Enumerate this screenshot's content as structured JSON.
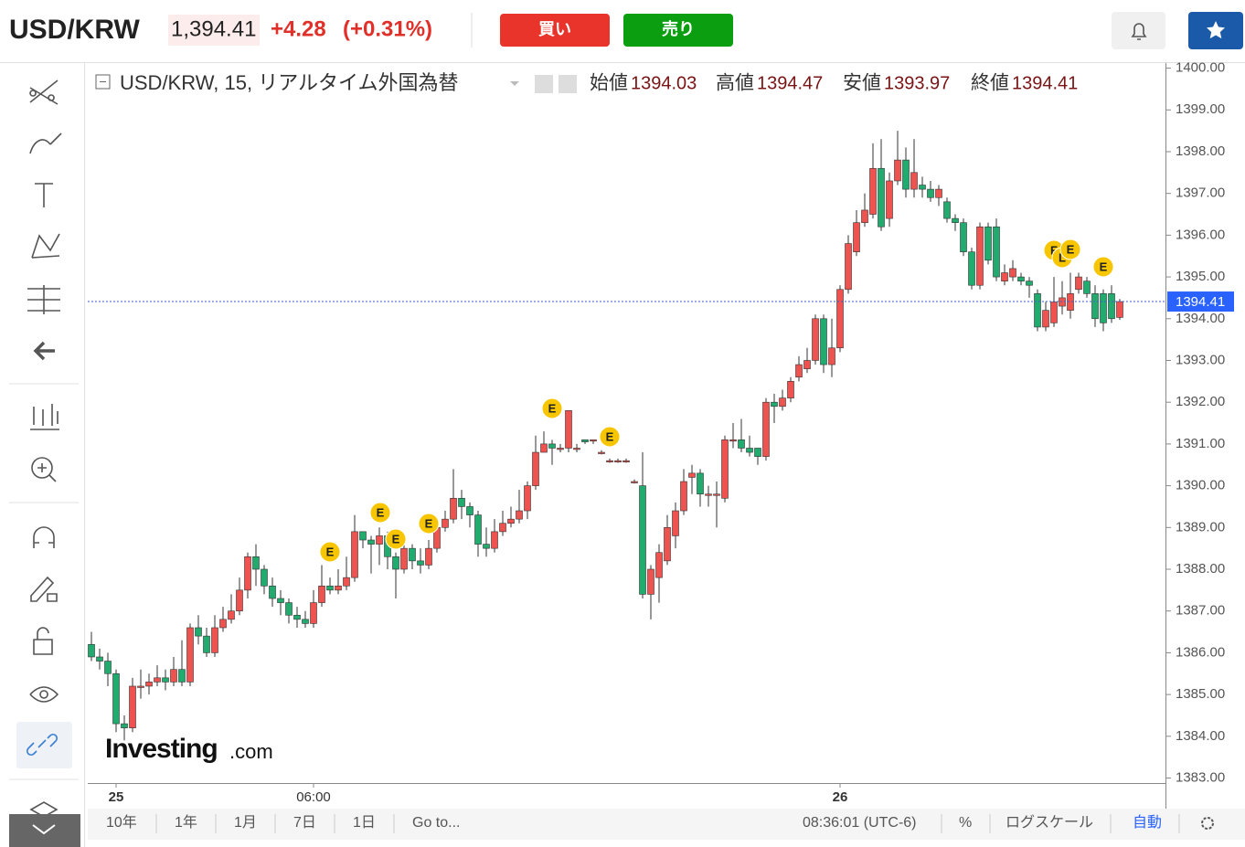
{
  "header": {
    "symbol": "USD/KRW",
    "price": "1,394.41",
    "change": "+4.28",
    "change_pct": "(+0.31%)",
    "buy": "買い",
    "sell": "売り"
  },
  "chart_data": {
    "type": "candlestick",
    "title": "USD/KRW, 15, リアルタイム外国為替",
    "ohlc_labels": [
      "始値",
      "高値",
      "安値",
      "終値"
    ],
    "categories": [
      null,
      null,
      null,
      "25",
      null,
      null,
      null,
      null,
      null,
      null,
      null,
      null,
      null,
      null,
      null,
      null,
      null,
      null,
      null,
      null,
      null,
      null,
      null,
      null,
      null,
      null,
      null,
      "06:00",
      null,
      null,
      null,
      null,
      null,
      null,
      null,
      null,
      null,
      null,
      null,
      null,
      null,
      null,
      null,
      null,
      null,
      null,
      null,
      null,
      null,
      null,
      null,
      null,
      null,
      null,
      null,
      null,
      null,
      null,
      null,
      null,
      null,
      null,
      null,
      null,
      null,
      null,
      null,
      null,
      null,
      null,
      null,
      null,
      null,
      null,
      null,
      null,
      null,
      null,
      null,
      null,
      null,
      null,
      null,
      null,
      null,
      null,
      null,
      null,
      null,
      null,
      null,
      "26",
      null,
      null,
      null,
      null,
      null,
      null,
      null,
      null,
      null,
      null,
      null,
      null,
      null,
      null,
      null,
      null,
      null,
      null,
      null,
      null,
      null,
      null,
      null,
      null,
      null,
      null,
      null,
      null,
      null,
      null,
      null,
      null,
      null,
      null
    ],
    "open": [
      1386.2,
      1385.9,
      1385.8,
      1385.5,
      1384.3,
      1384.2,
      1385.2,
      1385.2,
      1385.3,
      1385.4,
      1385.3,
      1385.6,
      1385.3,
      1386.6,
      1386.4,
      1386.0,
      1386.6,
      1386.8,
      1387.0,
      1387.5,
      1388.3,
      1388.0,
      1387.6,
      1387.3,
      1387.2,
      1386.9,
      1386.8,
      1386.7,
      1387.2,
      1387.6,
      1387.5,
      1387.6,
      1387.8,
      1388.9,
      1388.7,
      1388.6,
      1388.8,
      1388.3,
      1388.0,
      1388.5,
      1388.2,
      1388.1,
      1388.5,
      1389.0,
      1389.2,
      1389.7,
      1389.5,
      1389.3,
      1388.6,
      1388.5,
      1388.9,
      1389.1,
      1389.2,
      1389.4,
      1390.0,
      1390.8,
      1391.0,
      1390.9,
      1390.9,
      1390.9,
      1391.1,
      1391.1,
      1390.8,
      1390.6,
      1390.6,
      1390.6,
      1390.1,
      1390.0,
      1387.4,
      1387.8,
      1388.2,
      1388.8,
      1389.4,
      1390.2,
      1390.3,
      1389.8,
      1389.8,
      1389.7,
      1391.1,
      1391.1,
      1390.9,
      1390.9,
      1390.7,
      1392.0,
      1391.9,
      1392.1,
      1392.6,
      1392.8,
      1393.0,
      1394.0,
      1392.9,
      1393.3,
      1394.7,
      1395.6,
      1396.3,
      1396.5,
      1397.6,
      1396.4,
      1397.3,
      1397.8,
      1397.1,
      1397.2,
      1397.1,
      1396.9,
      1396.8,
      1396.4,
      1396.3,
      1395.6,
      1394.8,
      1396.2,
      1396.2,
      1394.9,
      1395.0,
      1395.0,
      1394.9,
      1394.6,
      1393.8,
      1393.9,
      1394.3,
      1394.2,
      1394.7,
      1394.9,
      1394.6,
      1394.6,
      1394.6,
      1394.03
    ],
    "high": [
      1386.5,
      1386.1,
      1386.0,
      1385.6,
      1384.5,
      1385.4,
      1385.6,
      1385.5,
      1385.7,
      1385.6,
      1385.9,
      1386.3,
      1386.7,
      1386.9,
      1386.6,
      1386.9,
      1387.1,
      1387.4,
      1387.8,
      1388.4,
      1388.6,
      1388.1,
      1387.8,
      1387.5,
      1387.3,
      1387.1,
      1387.0,
      1387.5,
      1388.1,
      1387.8,
      1388.0,
      1388.3,
      1389.3,
      1388.9,
      1388.8,
      1389.0,
      1388.9,
      1388.4,
      1388.7,
      1388.6,
      1388.5,
      1388.7,
      1389.2,
      1389.4,
      1390.4,
      1389.9,
      1389.6,
      1389.4,
      1389.0,
      1389.2,
      1389.4,
      1389.5,
      1389.9,
      1390.1,
      1391.2,
      1391.3,
      1391.1,
      1391.0,
      1391.8,
      1391.0,
      1391.1,
      1391.1,
      1390.85,
      1390.65,
      1390.65,
      1390.65,
      1390.15,
      1390.8,
      1388.1,
      1388.6,
      1389.3,
      1389.6,
      1390.4,
      1390.5,
      1390.4,
      1390.0,
      1390.1,
      1391.2,
      1391.5,
      1391.6,
      1391.2,
      1390.9,
      1392.1,
      1392.2,
      1392.3,
      1392.6,
      1393.1,
      1393.3,
      1394.1,
      1394.1,
      1394.0,
      1394.8,
      1396.0,
      1396.6,
      1397.0,
      1398.2,
      1398.3,
      1397.5,
      1398.5,
      1398.1,
      1398.3,
      1397.4,
      1397.3,
      1397.2,
      1396.9,
      1396.5,
      1396.4,
      1395.7,
      1396.3,
      1396.3,
      1396.4,
      1395.3,
      1395.4,
      1395.1,
      1395.0,
      1394.7,
      1394.4,
      1395.0,
      1394.9,
      1395.1,
      1395.1,
      1395.0,
      1394.8,
      1394.7,
      1394.8,
      1394.47
    ],
    "low": [
      1385.8,
      1385.6,
      1385.2,
      1384.1,
      1383.9,
      1384.1,
      1384.9,
      1385.0,
      1385.2,
      1385.1,
      1385.2,
      1385.2,
      1385.2,
      1386.2,
      1385.9,
      1385.9,
      1386.5,
      1386.7,
      1386.9,
      1387.3,
      1387.6,
      1387.4,
      1387.1,
      1386.9,
      1386.7,
      1386.6,
      1386.6,
      1386.6,
      1387.1,
      1387.4,
      1387.4,
      1387.5,
      1387.7,
      1388.5,
      1387.9,
      1388.1,
      1388.0,
      1387.3,
      1387.9,
      1388.0,
      1387.9,
      1388.0,
      1388.4,
      1388.9,
      1389.1,
      1389.2,
      1389.0,
      1388.3,
      1388.3,
      1388.4,
      1388.8,
      1389.0,
      1389.1,
      1389.2,
      1389.9,
      1390.8,
      1390.5,
      1390.8,
      1390.8,
      1390.8,
      1391.0,
      1391.0,
      1390.75,
      1390.55,
      1390.55,
      1390.55,
      1390.05,
      1387.3,
      1386.8,
      1387.2,
      1388.1,
      1388.5,
      1389.3,
      1389.8,
      1389.5,
      1389.5,
      1389.0,
      1389.6,
      1390.9,
      1390.8,
      1390.7,
      1390.5,
      1390.6,
      1391.5,
      1391.8,
      1392.0,
      1392.5,
      1392.7,
      1392.9,
      1392.7,
      1392.6,
      1393.2,
      1394.6,
      1395.5,
      1396.2,
      1396.4,
      1396.1,
      1396.2,
      1397.2,
      1396.9,
      1396.9,
      1396.9,
      1396.8,
      1396.7,
      1396.3,
      1396.1,
      1395.5,
      1394.7,
      1394.7,
      1395.3,
      1394.9,
      1394.8,
      1394.9,
      1394.8,
      1394.5,
      1393.7,
      1393.7,
      1393.8,
      1394.1,
      1394.0,
      1394.6,
      1394.5,
      1393.8,
      1393.7,
      1393.9,
      1393.97
    ],
    "close": [
      1385.9,
      1385.8,
      1385.5,
      1384.3,
      1384.2,
      1385.2,
      1385.2,
      1385.3,
      1385.4,
      1385.3,
      1385.6,
      1385.3,
      1386.6,
      1386.4,
      1386.0,
      1386.6,
      1386.8,
      1387.0,
      1387.5,
      1388.3,
      1388.0,
      1387.6,
      1387.3,
      1387.2,
      1386.9,
      1386.8,
      1386.7,
      1387.2,
      1387.6,
      1387.5,
      1387.6,
      1387.8,
      1388.9,
      1388.7,
      1388.6,
      1388.8,
      1388.3,
      1388.0,
      1388.5,
      1388.2,
      1388.1,
      1388.5,
      1389.0,
      1389.2,
      1389.7,
      1389.5,
      1389.3,
      1388.6,
      1388.5,
      1388.9,
      1389.1,
      1389.2,
      1389.4,
      1390.0,
      1390.8,
      1391.0,
      1390.9,
      1390.9,
      1391.8,
      1390.9,
      1391.05,
      1391.1,
      1390.8,
      1390.6,
      1390.6,
      1390.6,
      1390.1,
      1387.4,
      1388.0,
      1388.4,
      1389.0,
      1389.4,
      1390.1,
      1390.3,
      1389.8,
      1389.8,
      1389.8,
      1391.1,
      1391.1,
      1390.9,
      1390.8,
      1390.7,
      1392.0,
      1391.9,
      1392.1,
      1392.5,
      1392.9,
      1393.0,
      1394.0,
      1392.9,
      1393.3,
      1394.7,
      1395.8,
      1396.3,
      1396.6,
      1397.6,
      1396.2,
      1397.3,
      1397.8,
      1397.1,
      1397.5,
      1397.1,
      1396.9,
      1397.1,
      1396.4,
      1396.3,
      1395.6,
      1394.8,
      1396.2,
      1395.4,
      1395.0,
      1395.1,
      1395.2,
      1394.9,
      1394.8,
      1393.8,
      1394.2,
      1394.4,
      1394.5,
      1394.6,
      1395.0,
      1394.6,
      1394.0,
      1393.9,
      1394.0,
      1394.41
    ],
    "up_color": "#ef5350",
    "down_color": "#22ab6f",
    "ylim": [
      1382.88,
      1400.1
    ],
    "yticks": [
      {
        "value": 1383,
        "label": "1383.00"
      },
      {
        "value": 1384,
        "label": "1384.00"
      },
      {
        "value": 1385,
        "label": "1385.00"
      },
      {
        "value": 1386,
        "label": "1386.00"
      },
      {
        "value": 1387,
        "label": "1387.00"
      },
      {
        "value": 1388,
        "label": "1388.00"
      },
      {
        "value": 1389,
        "label": "1389.00"
      },
      {
        "value": 1390,
        "label": "1390.00"
      },
      {
        "value": 1391,
        "label": "1391.00"
      },
      {
        "value": 1392,
        "label": "1392.00"
      },
      {
        "value": 1393,
        "label": "1393.00"
      },
      {
        "value": 1394,
        "label": "1394.00"
      },
      {
        "value": 1395,
        "label": "1395.00"
      },
      {
        "value": 1396,
        "label": "1396.00"
      },
      {
        "value": 1397,
        "label": "1397.00"
      },
      {
        "value": 1398,
        "label": "1398.00"
      },
      {
        "value": 1399,
        "label": "1399.00"
      },
      {
        "value": 1400,
        "label": "1400.00"
      }
    ],
    "last_price": 1394.41,
    "events": [
      "E",
      "E",
      "E",
      "E",
      "E",
      "E",
      "F",
      "L",
      "E",
      "E"
    ],
    "logo": [
      "Investing",
      ".com"
    ]
  },
  "bottom_bar": {
    "ranges": [
      "10年",
      "1年",
      "1月",
      "7日",
      "1日",
      "Go to..."
    ],
    "time": "08:36:01 (UTC-6)",
    "percent": "%",
    "log": "ログスケール",
    "auto": "自動"
  }
}
